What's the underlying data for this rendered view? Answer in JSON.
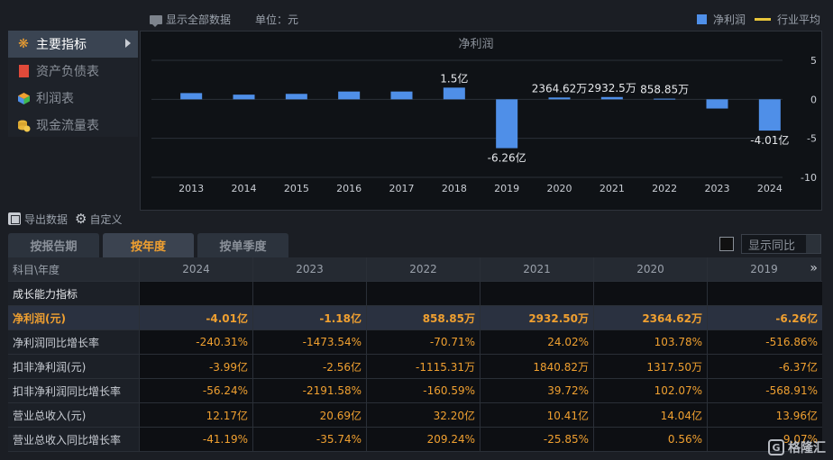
{
  "topbar": {
    "show_all": "显示全部数据",
    "unit": "单位：元",
    "legend_bar": "净利润",
    "legend_line": "行业平均"
  },
  "sidebar": {
    "items": [
      {
        "label": "主要指标",
        "icon": "snowflake-icon"
      },
      {
        "label": "资产负债表",
        "icon": "document-icon"
      },
      {
        "label": "利润表",
        "icon": "cube-icon"
      },
      {
        "label": "现金流量表",
        "icon": "coins-icon"
      }
    ]
  },
  "toolbar": {
    "export": "导出数据",
    "custom": "自定义"
  },
  "tabs": [
    "按报告期",
    "按年度",
    "按单季度"
  ],
  "yoy": {
    "select": "显示同比"
  },
  "colors": {
    "bar": "#4f8fe8",
    "line": "#e8c53a",
    "accent": "#f0a030"
  },
  "chart_data": {
    "type": "bar",
    "title": "净利润",
    "categories": [
      "2013",
      "2014",
      "2015",
      "2016",
      "2017",
      "2018",
      "2019",
      "2020",
      "2021",
      "2022",
      "2023",
      "2024"
    ],
    "series": [
      {
        "name": "净利润",
        "values": [
          0.8,
          0.6,
          0.7,
          1.0,
          1.0,
          1.5,
          -6.26,
          0.236462,
          0.29325,
          0.085885,
          -1.18,
          -4.01
        ]
      }
    ],
    "data_labels": [
      "",
      "",
      "",
      "",
      "",
      "1.5亿",
      "-6.26亿",
      "2364.62万",
      "2932.5万",
      "858.85万",
      "",
      "-4.01亿"
    ],
    "yticks": [
      "5",
      "0",
      "-5",
      "-10"
    ],
    "ylim": [
      -10,
      5
    ],
    "grid": true,
    "legend_position": "top-right"
  },
  "table": {
    "header": {
      "label": "科目\\年度",
      "years": [
        "2024",
        "2023",
        "2022",
        "2021",
        "2020",
        "2019"
      ]
    },
    "rows": [
      {
        "label": "成长能力指标",
        "type": "section",
        "values": [
          "",
          "",
          "",
          "",
          "",
          ""
        ]
      },
      {
        "label": "净利润(元)",
        "type": "hl",
        "values": [
          "-4.01亿",
          "-1.18亿",
          "858.85万",
          "2932.50万",
          "2364.62万",
          "-6.26亿"
        ]
      },
      {
        "label": "净利润同比增长率",
        "type": "normal",
        "values": [
          "-240.31%",
          "-1473.54%",
          "-70.71%",
          "24.02%",
          "103.78%",
          "-516.86%"
        ]
      },
      {
        "label": "扣非净利润(元)",
        "type": "normal",
        "values": [
          "-3.99亿",
          "-2.56亿",
          "-1115.31万",
          "1840.82万",
          "1317.50万",
          "-6.37亿"
        ]
      },
      {
        "label": "扣非净利润同比增长率",
        "type": "normal",
        "values": [
          "-56.24%",
          "-2191.58%",
          "-160.59%",
          "39.72%",
          "102.07%",
          "-568.91%"
        ]
      },
      {
        "label": "营业总收入(元)",
        "type": "normal",
        "values": [
          "12.17亿",
          "20.69亿",
          "32.20亿",
          "10.41亿",
          "14.04亿",
          "13.96亿"
        ]
      },
      {
        "label": "营业总收入同比增长率",
        "type": "normal",
        "values": [
          "-41.19%",
          "-35.74%",
          "209.24%",
          "-25.85%",
          "0.56%",
          "9.07%"
        ]
      }
    ]
  },
  "watermark": "格隆汇"
}
